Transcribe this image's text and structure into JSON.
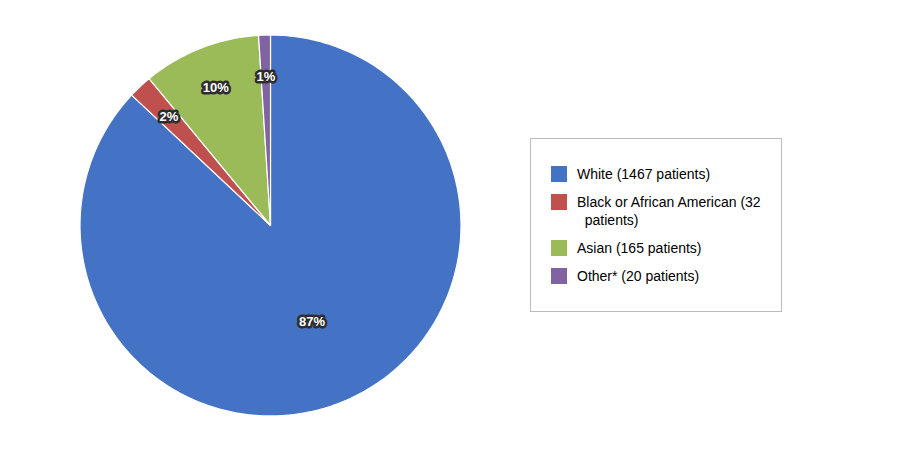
{
  "chart_data": {
    "type": "pie",
    "categories": [
      "White (1467 patients)",
      "Black or African American (32\n  patients)",
      "Asian (165 patients)",
      "Other* (20 patients)"
    ],
    "values": [
      87,
      2,
      10,
      1
    ],
    "value_labels": [
      "87%",
      "2%",
      "10%",
      "1%"
    ],
    "colors": [
      "#4472C4",
      "#C0504D",
      "#9BBB59",
      "#8064A2"
    ],
    "data_labels": true,
    "legend": "right"
  }
}
